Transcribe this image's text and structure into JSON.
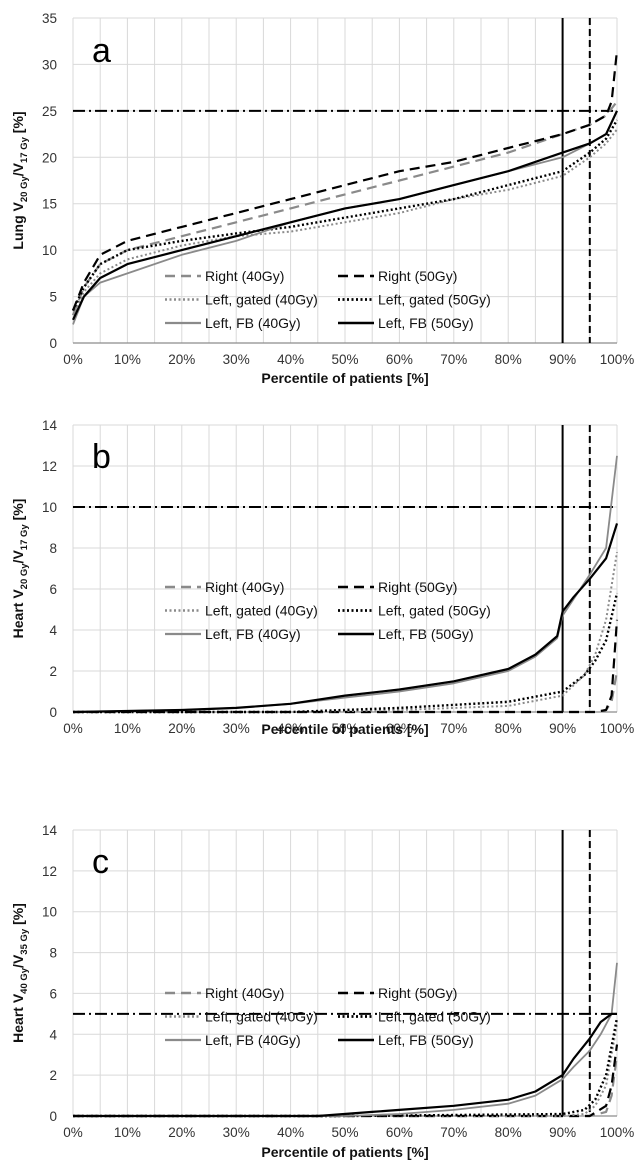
{
  "chart_data": [
    {
      "type": "line",
      "panel": "a",
      "ylabel": {
        "base": "Lung V",
        "sub1": "20 Gy",
        "mid": "/V",
        "sub2": "17 Gy",
        "tail": " [%]"
      },
      "xlabel": "Percentile of patients [%]",
      "xlim": [
        0,
        100
      ],
      "ylim": [
        0,
        35
      ],
      "x_ticks": [
        "0%",
        "10%",
        "20%",
        "30%",
        "40%",
        "50%",
        "60%",
        "70%",
        "80%",
        "90%",
        "100%"
      ],
      "y_ticks": [
        0,
        5,
        10,
        15,
        20,
        25,
        30,
        35
      ],
      "grid": true,
      "threshold_h": 25,
      "threshold_v_solid": 90,
      "threshold_v_dashed": 95,
      "series": [
        {
          "name": "Right (40Gy)",
          "style": "gray-dashed",
          "x": [
            0,
            2,
            5,
            10,
            20,
            30,
            40,
            50,
            60,
            70,
            80,
            90,
            95,
            98,
            100
          ],
          "y": [
            3,
            6,
            8.5,
            10,
            11.5,
            13,
            14.5,
            16,
            17.5,
            19,
            20.5,
            22.5,
            23.5,
            24.5,
            26
          ]
        },
        {
          "name": "Right (50Gy)",
          "style": "black-dashed",
          "x": [
            0,
            2,
            5,
            10,
            20,
            30,
            40,
            50,
            60,
            70,
            80,
            90,
            95,
            98,
            99,
            100
          ],
          "y": [
            3.5,
            6.5,
            9.5,
            11,
            12.5,
            14,
            15.5,
            17,
            18.5,
            19.5,
            21,
            22.5,
            23.5,
            24.5,
            26,
            31.5
          ]
        },
        {
          "name": "Left, gated (40Gy)",
          "style": "gray-dotted",
          "x": [
            0,
            2,
            5,
            10,
            20,
            30,
            40,
            50,
            60,
            70,
            80,
            90,
            95,
            98,
            100
          ],
          "y": [
            3,
            5.5,
            7.5,
            9,
            10.5,
            11.5,
            12,
            13,
            14,
            15.5,
            16.5,
            18,
            20,
            21.5,
            23
          ]
        },
        {
          "name": "Left, gated (50Gy)",
          "style": "black-dotted",
          "x": [
            0,
            2,
            5,
            10,
            20,
            30,
            40,
            50,
            60,
            70,
            80,
            90,
            95,
            98,
            100
          ],
          "y": [
            3.5,
            6,
            8.5,
            10,
            11,
            11.8,
            12.5,
            13.5,
            14.5,
            15.5,
            17,
            18.5,
            20.5,
            22,
            24
          ]
        },
        {
          "name": "Left, FB (40Gy)",
          "style": "gray-solid",
          "x": [
            0,
            2,
            5,
            10,
            20,
            30,
            40,
            50,
            60,
            70,
            80,
            90,
            95,
            98,
            100
          ],
          "y": [
            2,
            5,
            6.5,
            7.5,
            9.5,
            11,
            13,
            14.5,
            15.5,
            17,
            18.5,
            20,
            21.5,
            22.5,
            25
          ]
        },
        {
          "name": "Left, FB (50Gy)",
          "style": "black-solid",
          "x": [
            0,
            2,
            5,
            10,
            20,
            30,
            40,
            50,
            60,
            70,
            80,
            90,
            95,
            98,
            100
          ],
          "y": [
            2.5,
            5,
            7,
            8.5,
            10,
            11.5,
            13,
            14.5,
            15.5,
            17,
            18.5,
            20.5,
            21.5,
            22.5,
            25
          ]
        }
      ]
    },
    {
      "type": "line",
      "panel": "b",
      "ylabel": {
        "base": "Heart V",
        "sub1": "20 Gy",
        "mid": "/V",
        "sub2": "17 Gy",
        "tail": " [%]"
      },
      "xlabel": "Percentile of patients [%]",
      "xlim": [
        0,
        100
      ],
      "ylim": [
        0,
        14
      ],
      "x_ticks": [
        "0%",
        "10%",
        "20%",
        "30%",
        "40%",
        "50%",
        "60%",
        "70%",
        "80%",
        "90%",
        "100%"
      ],
      "y_ticks": [
        0,
        2,
        4,
        6,
        8,
        10,
        12,
        14
      ],
      "grid": true,
      "threshold_h": 10,
      "threshold_v_solid": 90,
      "threshold_v_dashed": 95,
      "series": [
        {
          "name": "Right (40Gy)",
          "style": "gray-dashed",
          "x": [
            0,
            50,
            90,
            96,
            98,
            99,
            100
          ],
          "y": [
            0,
            0,
            0,
            0,
            0.1,
            0.5,
            2
          ]
        },
        {
          "name": "Right (50Gy)",
          "style": "black-dashed",
          "x": [
            0,
            50,
            90,
            96,
            98,
            99,
            100
          ],
          "y": [
            0,
            0,
            0,
            0,
            0.1,
            0.8,
            4.5
          ]
        },
        {
          "name": "Left, gated (40Gy)",
          "style": "gray-dotted",
          "x": [
            0,
            40,
            60,
            80,
            90,
            94,
            96,
            98,
            100
          ],
          "y": [
            0,
            0,
            0.1,
            0.3,
            0.8,
            1.8,
            2.8,
            4.5,
            7.8
          ]
        },
        {
          "name": "Left, gated (50Gy)",
          "style": "black-dotted",
          "x": [
            0,
            40,
            60,
            80,
            90,
            94,
            96,
            98,
            100
          ],
          "y": [
            0,
            0,
            0.2,
            0.5,
            1,
            1.8,
            2.5,
            3.5,
            5.8
          ]
        },
        {
          "name": "Left, FB (40Gy)",
          "style": "gray-solid",
          "x": [
            0,
            20,
            30,
            40,
            50,
            60,
            70,
            80,
            85,
            89,
            90,
            92,
            95,
            98,
            100
          ],
          "y": [
            0,
            0.1,
            0.2,
            0.4,
            0.7,
            1,
            1.4,
            2,
            2.7,
            3.6,
            4.7,
            5.5,
            6.7,
            8,
            12.5
          ]
        },
        {
          "name": "Left, FB (50Gy)",
          "style": "black-solid",
          "x": [
            0,
            20,
            30,
            40,
            50,
            60,
            70,
            80,
            85,
            89,
            90,
            92,
            95,
            98,
            100
          ],
          "y": [
            0,
            0.1,
            0.2,
            0.4,
            0.8,
            1.1,
            1.5,
            2.1,
            2.8,
            3.7,
            4.9,
            5.6,
            6.5,
            7.5,
            9.2
          ]
        }
      ]
    },
    {
      "type": "line",
      "panel": "c",
      "ylabel": {
        "base": "Heart V",
        "sub1": "40 Gy",
        "mid": "/V",
        "sub2": "35 Gy",
        "tail": " [%]"
      },
      "xlabel": "Percentile of patients [%]",
      "xlim": [
        0,
        100
      ],
      "ylim": [
        0,
        14
      ],
      "x_ticks": [
        "0%",
        "10%",
        "20%",
        "30%",
        "40%",
        "50%",
        "60%",
        "70%",
        "80%",
        "90%",
        "100%"
      ],
      "y_ticks": [
        0,
        2,
        4,
        6,
        8,
        10,
        12,
        14
      ],
      "grid": true,
      "threshold_h": 5,
      "threshold_v_solid": 90,
      "threshold_v_dashed": 95,
      "series": [
        {
          "name": "Right (40Gy)",
          "style": "gray-dashed",
          "x": [
            0,
            50,
            95,
            98,
            99,
            100
          ],
          "y": [
            0,
            0,
            0,
            0.2,
            1,
            3
          ]
        },
        {
          "name": "Right (50Gy)",
          "style": "black-dashed",
          "x": [
            0,
            50,
            95,
            98,
            99,
            100
          ],
          "y": [
            0,
            0,
            0,
            0.5,
            1.5,
            3.5
          ]
        },
        {
          "name": "Left, gated (40Gy)",
          "style": "gray-dotted",
          "x": [
            0,
            50,
            90,
            94,
            96,
            98,
            100
          ],
          "y": [
            0,
            0,
            0,
            0.1,
            0.5,
            1.5,
            4.5
          ]
        },
        {
          "name": "Left, gated (50Gy)",
          "style": "black-dotted",
          "x": [
            0,
            50,
            90,
            94,
            96,
            98,
            100
          ],
          "y": [
            0,
            0,
            0.1,
            0.3,
            0.8,
            2,
            4.8
          ]
        },
        {
          "name": "Left, FB (40Gy)",
          "style": "gray-solid",
          "x": [
            0,
            50,
            60,
            70,
            80,
            85,
            90,
            92,
            95,
            97,
            99,
            100
          ],
          "y": [
            0,
            0,
            0.1,
            0.3,
            0.6,
            1,
            1.8,
            2.4,
            3.2,
            4,
            5,
            7.5
          ]
        },
        {
          "name": "Left, FB (50Gy)",
          "style": "black-solid",
          "x": [
            0,
            45,
            55,
            60,
            70,
            80,
            85,
            90,
            92,
            95,
            97,
            99,
            100
          ],
          "y": [
            0,
            0,
            0.2,
            0.3,
            0.5,
            0.8,
            1.2,
            2,
            2.8,
            3.8,
            4.6,
            5,
            5
          ]
        }
      ]
    }
  ]
}
